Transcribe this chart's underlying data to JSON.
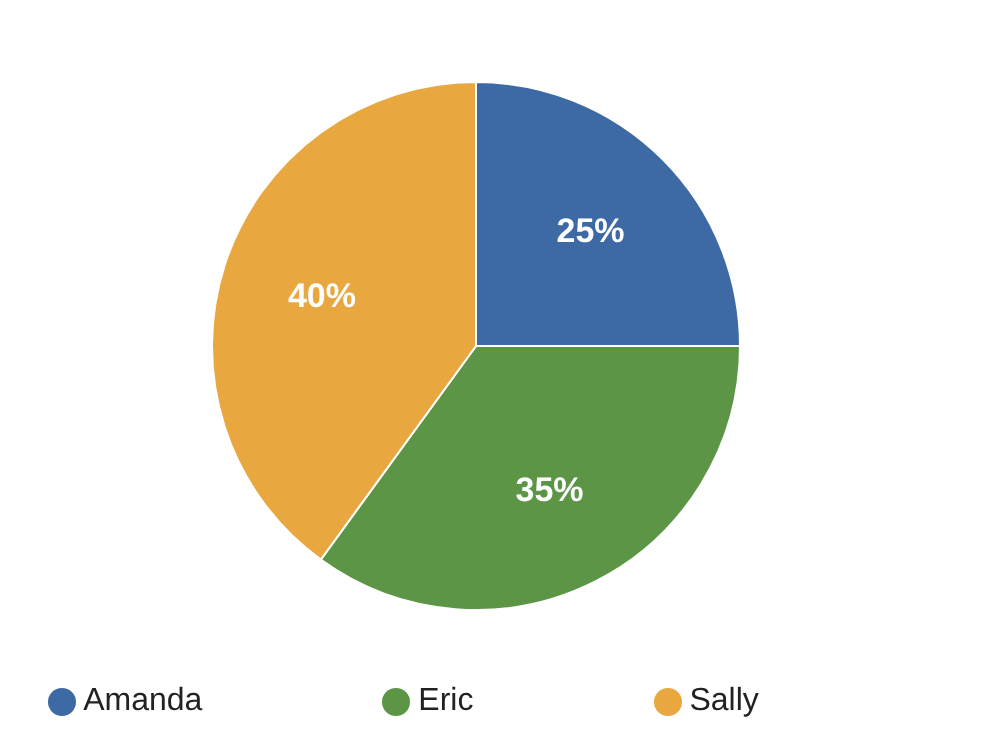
{
  "chart_data": {
    "type": "pie",
    "categories": [
      "Amanda",
      "Eric",
      "Sally"
    ],
    "values": [
      25,
      35,
      40
    ],
    "colors": [
      "#3d69a5",
      "#5b9545",
      "#e9a73f"
    ],
    "value_labels": [
      "25%",
      "35%",
      "40%"
    ],
    "legend": "bottom"
  }
}
